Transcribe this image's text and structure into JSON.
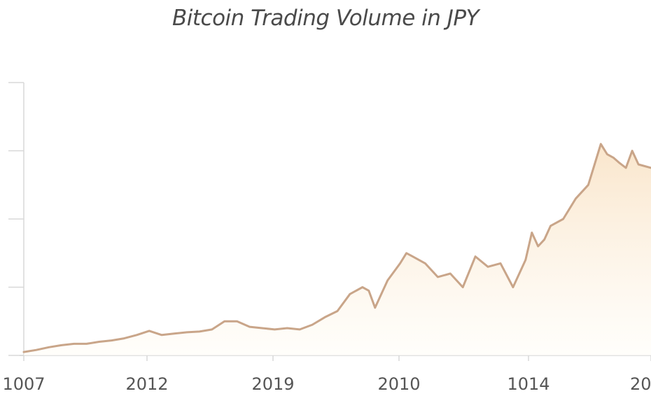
{
  "chart_data": {
    "type": "area",
    "title": "Bitcoin Trading Volume in JPY",
    "xlabel": "",
    "ylabel": "",
    "x_tick_labels": [
      "1007",
      "2012",
      "2019",
      "2010",
      "1014",
      "20"
    ],
    "grid": false,
    "legend": "none",
    "colors": {
      "line": "#c9a589",
      "fill_top": "#f9e3c6",
      "fill_bottom": "#fffdf8",
      "axis": "#d8d8d8",
      "tick_text": "#555555",
      "title_text": "#4a4a4a"
    },
    "ylim": [
      0,
      4
    ],
    "y_ticks": [
      0,
      1,
      2,
      3,
      4
    ],
    "x_range": [
      0,
      5
    ],
    "series": [
      {
        "x": [
          0,
          0.1,
          0.2,
          0.3,
          0.4,
          0.5,
          0.6,
          0.7,
          0.8,
          0.9,
          1.0,
          1.1,
          1.2,
          1.3,
          1.4,
          1.5,
          1.6,
          1.7,
          1.8,
          1.9,
          2.0,
          2.1,
          2.2,
          2.3,
          2.4,
          2.5,
          2.6,
          2.7,
          2.75,
          2.8,
          2.9,
          3.0,
          3.05,
          3.1,
          3.2,
          3.3,
          3.4,
          3.5,
          3.6,
          3.7,
          3.8,
          3.9,
          4.0,
          4.05,
          4.1,
          4.15,
          4.2,
          4.3,
          4.4,
          4.5,
          4.55,
          4.6,
          4.65,
          4.7,
          4.75,
          4.8,
          4.85,
          4.9,
          5.0
        ],
        "values": [
          0.05,
          0.08,
          0.12,
          0.15,
          0.17,
          0.17,
          0.2,
          0.22,
          0.25,
          0.3,
          0.36,
          0.3,
          0.32,
          0.34,
          0.35,
          0.38,
          0.5,
          0.5,
          0.42,
          0.4,
          0.38,
          0.4,
          0.38,
          0.45,
          0.56,
          0.65,
          0.9,
          1.0,
          0.95,
          0.7,
          1.1,
          1.35,
          1.5,
          1.45,
          1.35,
          1.15,
          1.2,
          1.0,
          1.45,
          1.3,
          1.35,
          1.0,
          1.4,
          1.8,
          1.6,
          1.7,
          1.9,
          2.0,
          2.3,
          2.5,
          2.8,
          3.1,
          2.95,
          2.9,
          2.82,
          2.75,
          3.0,
          2.8,
          2.75
        ]
      }
    ]
  }
}
